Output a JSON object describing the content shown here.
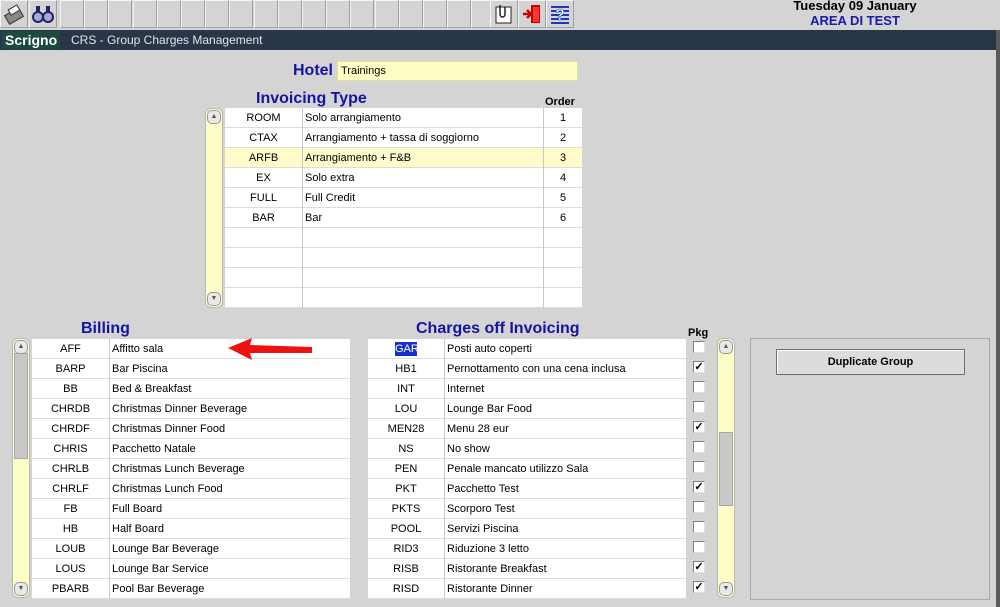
{
  "header": {
    "date": "Tuesday 09 January",
    "area": "AREA DI TEST"
  },
  "toolbar": {
    "left_icons": [
      "print-icon",
      "binoculars-icon"
    ],
    "right_icons": [
      "notepad-icon",
      "exit-door-icon",
      "help-icon"
    ]
  },
  "titlebar": {
    "logo": "Scrigno",
    "title": "CRS - Group Charges Management"
  },
  "hotel": {
    "label": "Hotel",
    "value": "Trainings"
  },
  "invoicing": {
    "heading": "Invoicing Type",
    "order_label": "Order",
    "selected": 2,
    "empty_rows": 4,
    "rows": [
      [
        "ROOM",
        "Solo arrangiamento",
        "1"
      ],
      [
        "CTAX",
        "Arrangiamento + tassa di soggiorno",
        "2"
      ],
      [
        "ARFB",
        "Arrangiamento + F&B",
        "3"
      ],
      [
        "EX",
        "Solo extra",
        "4"
      ],
      [
        "FULL",
        "Full Credit",
        "5"
      ],
      [
        "BAR",
        "Bar",
        "6"
      ]
    ]
  },
  "billing": {
    "heading": "Billing",
    "rows": [
      [
        "AFF",
        "Affitto sala"
      ],
      [
        "BARP",
        "Bar Piscina"
      ],
      [
        "BB",
        "Bed & Breakfast"
      ],
      [
        "CHRDB",
        "Christmas Dinner Beverage"
      ],
      [
        "CHRDF",
        "Christmas Dinner Food"
      ],
      [
        "CHRIS",
        "Pacchetto Natale"
      ],
      [
        "CHRLB",
        "Christmas Lunch Beverage"
      ],
      [
        "CHRLF",
        "Christmas Lunch Food"
      ],
      [
        "FB",
        "Full Board"
      ],
      [
        "HB",
        "Half Board"
      ],
      [
        "LOUB",
        "Lounge Bar Beverage"
      ],
      [
        "LOUS",
        "Lounge Bar Service"
      ],
      [
        "PBARB",
        "Pool Bar Beverage"
      ]
    ]
  },
  "charges": {
    "heading": "Charges off Invoicing",
    "pkg_label": "Pkg",
    "selected_code": "GAR",
    "rows": [
      [
        "GAR",
        "Posti auto coperti",
        false
      ],
      [
        "HB1",
        "Pernottamento con una cena inclusa",
        true
      ],
      [
        "INT",
        "Internet",
        false
      ],
      [
        "LOU",
        "Lounge Bar Food",
        false
      ],
      [
        "MEN28",
        "Menu 28 eur",
        true
      ],
      [
        "NS",
        "No show",
        false
      ],
      [
        "PEN",
        "Penale mancato utilizzo Sala",
        false
      ],
      [
        "PKT",
        "Pacchetto Test",
        true
      ],
      [
        "PKTS",
        "Scorporo Test",
        false
      ],
      [
        "POOL",
        "Servizi Piscina",
        false
      ],
      [
        "RID3",
        "Riduzione 3 letto",
        false
      ],
      [
        "RISB",
        "Ristorante Breakfast",
        true
      ],
      [
        "RISD",
        "Ristorante Dinner",
        true
      ]
    ]
  },
  "actions": {
    "duplicate_group": "Duplicate Group"
  },
  "colors": {
    "titlebar": "#283648",
    "heading": "#1414a0",
    "field": "#ffffc4",
    "annotation_arrow": "#ee1111"
  }
}
